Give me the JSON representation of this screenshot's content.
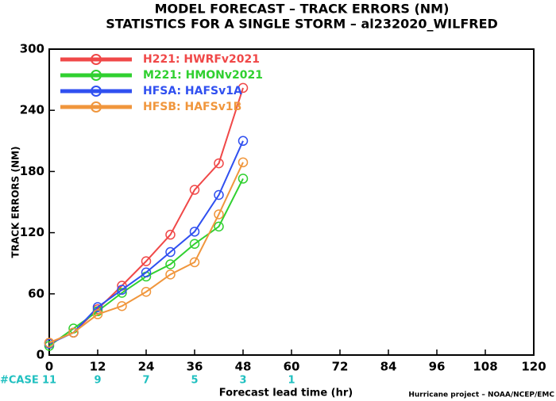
{
  "chart_data": {
    "type": "line",
    "title": "MODEL FORECAST – TRACK ERRORS (NM)",
    "subtitle": "STATISTICS FOR A SINGLE STORM – al232020_WILFRED",
    "x_label": "Forecast lead time (hr)",
    "y_label": "TRACK ERRORS (NM)",
    "footnote": "Hurricane project – NOAA/NCEP/EMC",
    "x": [
      0,
      6,
      12,
      18,
      24,
      30,
      36,
      42,
      48
    ],
    "series": [
      {
        "name": "H221: HWRFv2021",
        "color": "#f04848",
        "values": [
          12,
          22,
          45,
          68,
          92,
          118,
          162,
          188,
          262
        ]
      },
      {
        "name": "M221: HMONv2021",
        "color": "#30d030",
        "values": [
          9,
          26,
          43,
          61,
          77,
          89,
          109,
          126,
          173
        ]
      },
      {
        "name": "HFSA: HAFSv1A",
        "color": "#3050f0",
        "values": [
          11,
          22,
          47,
          64,
          81,
          101,
          121,
          157,
          210
        ]
      },
      {
        "name": "HFSB: HAFSv1B",
        "color": "#f0963c",
        "values": [
          12,
          22,
          40,
          48,
          62,
          79,
          91,
          138,
          189
        ]
      }
    ],
    "cases": {
      "label": "#CASE",
      "color": "#20c0c0",
      "x": [
        0,
        12,
        24,
        36,
        48,
        60
      ],
      "values": [
        11,
        9,
        7,
        5,
        3,
        1
      ]
    },
    "xlim": [
      0,
      120
    ],
    "xticks": [
      0,
      12,
      24,
      36,
      48,
      60,
      72,
      84,
      96,
      108,
      120
    ],
    "ylim": [
      0,
      300
    ],
    "yticks": [
      0,
      60,
      120,
      180,
      240,
      300
    ],
    "grid": false,
    "legend": "upper left"
  }
}
